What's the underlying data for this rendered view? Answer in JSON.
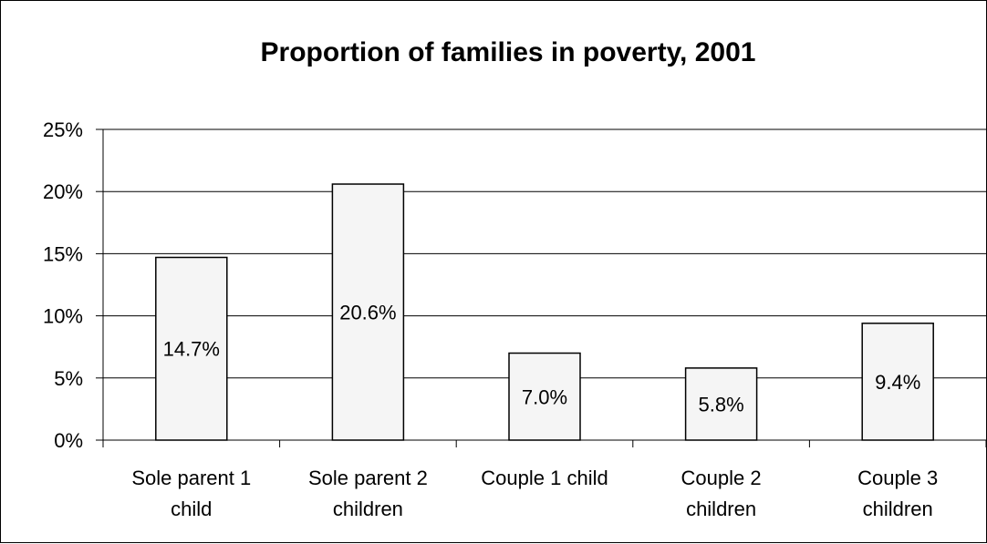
{
  "chart_data": {
    "type": "bar",
    "title": "Proportion of families in poverty, 2001",
    "xlabel": "",
    "ylabel": "",
    "categories": [
      [
        "Sole parent 1",
        "child"
      ],
      [
        "Sole parent 2",
        "children"
      ],
      [
        "Couple 1 child"
      ],
      [
        "Couple 2",
        "children"
      ],
      [
        "Couple 3",
        "children"
      ]
    ],
    "values": [
      14.7,
      20.6,
      7.0,
      5.8,
      9.4
    ],
    "data_labels": [
      "14.7%",
      "20.6%",
      "7.0%",
      "5.8%",
      "9.4%"
    ],
    "ylim": [
      0,
      25
    ],
    "yticks": [
      0,
      5,
      10,
      15,
      20,
      25
    ],
    "ytick_labels": [
      "0%",
      "5%",
      "10%",
      "15%",
      "20%",
      "25%"
    ],
    "grid": true,
    "legend": "none",
    "colors": {
      "bar_fill": "#f5f5f5",
      "bar_stroke": "#000000",
      "grid": "#000000"
    }
  }
}
